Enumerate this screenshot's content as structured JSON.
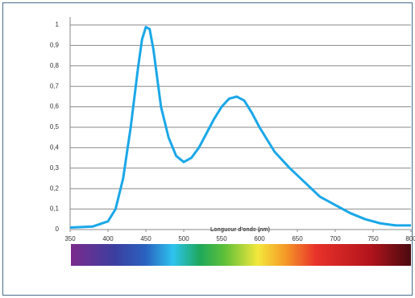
{
  "chart_data": {
    "type": "line",
    "x_label": "Longueur d'onde (nm)",
    "x": [
      350,
      380,
      400,
      410,
      420,
      430,
      440,
      445,
      450,
      455,
      460,
      470,
      480,
      490,
      500,
      510,
      520,
      530,
      540,
      550,
      560,
      570,
      580,
      590,
      600,
      620,
      640,
      660,
      680,
      700,
      720,
      740,
      760,
      780,
      800
    ],
    "series": [
      {
        "color": "#1aa7e8",
        "values": [
          0.01,
          0.015,
          0.04,
          0.1,
          0.25,
          0.5,
          0.8,
          0.93,
          0.99,
          0.98,
          0.88,
          0.6,
          0.45,
          0.36,
          0.33,
          0.35,
          0.4,
          0.47,
          0.54,
          0.6,
          0.64,
          0.65,
          0.63,
          0.57,
          0.5,
          0.38,
          0.3,
          0.23,
          0.16,
          0.12,
          0.08,
          0.05,
          0.03,
          0.02,
          0.02
        ]
      }
    ],
    "xlim": [
      350,
      800
    ],
    "xticks": [
      350,
      400,
      450,
      500,
      550,
      600,
      650,
      700,
      750,
      800
    ],
    "ylim": [
      0,
      1
    ],
    "yticks": [
      0,
      {
        "value": 0.1,
        "label": "0,1"
      },
      {
        "value": 0.2,
        "label": "0,2"
      },
      {
        "value": 0.3,
        "label": "0,3"
      },
      {
        "value": 0.4,
        "label": "0,4"
      },
      {
        "value": 0.5,
        "label": "0,5"
      },
      {
        "value": 0.6,
        "label": "0,6"
      },
      {
        "value": 0.7,
        "label": "0,7"
      },
      {
        "value": 0.8,
        "label": "0,8"
      },
      {
        "value": 0.9,
        "label": "0,9"
      },
      1
    ],
    "grid": true
  }
}
